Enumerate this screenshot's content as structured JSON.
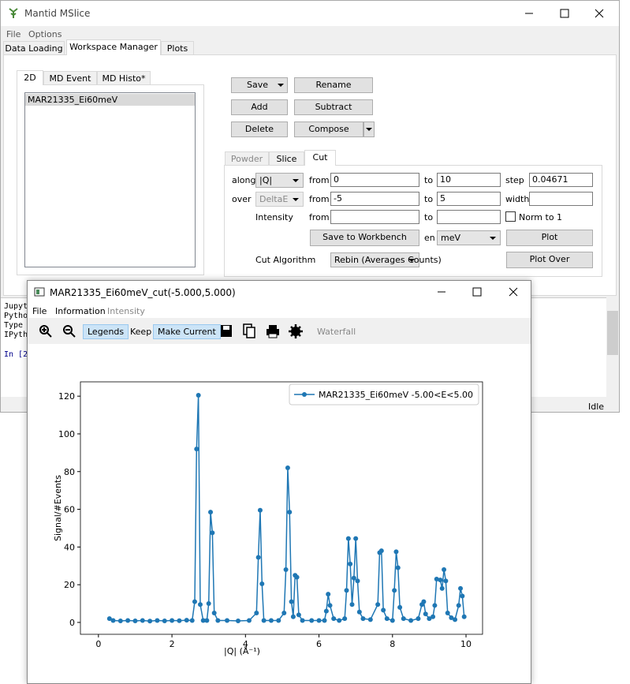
{
  "main_window": {
    "title": "Mantid MSlice",
    "menu": [
      "File",
      "Options"
    ],
    "tabs": [
      "Data Loading",
      "Workspace Manager",
      "Plots"
    ],
    "subtabs": [
      "2D",
      "MD Event",
      "MD Histo*"
    ],
    "workspaces": [
      "MAR21335_Ei60meV"
    ],
    "buttons": {
      "save": "Save",
      "rename": "Rename",
      "add": "Add",
      "subtract": "Subtract",
      "delete": "Delete",
      "compose": "Compose"
    },
    "cut_tabs": [
      "Powder",
      "Slice",
      "Cut"
    ],
    "cut_form": {
      "along_label": "along",
      "along_value": "|Q|",
      "from_label": "from",
      "from_value": "0",
      "to_label": "to",
      "to_value": "10",
      "step_label": "step",
      "step_value": "0.04671",
      "over_label": "over",
      "over_value": "DeltaE",
      "over_from": "-5",
      "over_to": "5",
      "width_label": "width",
      "intensity_label": "Intensity",
      "norm_label": "Norm to 1",
      "save_button": "Save to Workbench",
      "units_label": "en",
      "units_value": "meV",
      "plot_button": "Plot",
      "algorithm_label": "Cut Algorithm",
      "algorithm_value": "Rebin (Averages Counts)",
      "plot_over_button": "Plot Over"
    },
    "console": [
      "Jupyte",
      "Pytho",
      "Type",
      "IPytho",
      "In [2"
    ],
    "status": "Idle"
  },
  "plot_window": {
    "title": "MAR21335_Ei60meV_cut(-5.000,5.000)",
    "menu": [
      "File",
      "Information",
      "Intensity"
    ],
    "toolbar": {
      "legends": "Legends",
      "keep": "Keep",
      "make_current": "Make Current",
      "waterfall": "Waterfall"
    }
  },
  "chart_data": {
    "type": "line",
    "xlabel": "|Q| (Å⁻¹)",
    "ylabel": "Signal/#Events",
    "xlim": [
      -0.49,
      10.45
    ],
    "ylim": [
      -6.3,
      127.6
    ],
    "xticks": [
      0,
      2,
      4,
      6,
      8,
      10
    ],
    "yticks": [
      0,
      20,
      40,
      60,
      80,
      100,
      120
    ],
    "legend": "upper right",
    "x": [
      0.3,
      0.4,
      0.6,
      0.8,
      1.0,
      1.2,
      1.4,
      1.6,
      1.8,
      2.0,
      2.2,
      2.4,
      2.55,
      2.62,
      2.67,
      2.72,
      2.77,
      2.85,
      2.95,
      3.0,
      3.05,
      3.1,
      3.15,
      3.25,
      3.5,
      3.8,
      4.1,
      4.3,
      4.35,
      4.4,
      4.45,
      4.5,
      4.7,
      4.9,
      5.05,
      5.1,
      5.15,
      5.2,
      5.25,
      5.3,
      5.35,
      5.4,
      5.45,
      5.55,
      5.8,
      6.0,
      6.15,
      6.2,
      6.25,
      6.3,
      6.4,
      6.55,
      6.7,
      6.75,
      6.8,
      6.85,
      6.9,
      6.95,
      7.0,
      7.05,
      7.1,
      7.2,
      7.4,
      7.6,
      7.65,
      7.7,
      7.75,
      7.85,
      8.0,
      8.05,
      8.1,
      8.15,
      8.2,
      8.3,
      8.5,
      8.7,
      8.8,
      8.85,
      8.9,
      9.0,
      9.1,
      9.15,
      9.2,
      9.3,
      9.35,
      9.4,
      9.45,
      9.5,
      9.6,
      9.7,
      9.8,
      9.85,
      9.9,
      9.95
    ],
    "series": [
      {
        "name": "MAR21335_Ei60meV -5.00<E<5.00",
        "color": "#1f77b4",
        "values": [
          2,
          1,
          0.8,
          1,
          0.8,
          1,
          0.7,
          1,
          0.8,
          1,
          0.9,
          1.2,
          1,
          11,
          92,
          120.5,
          9.5,
          1,
          1,
          10,
          58.5,
          47.5,
          5,
          1,
          1,
          0.8,
          1,
          5,
          34.5,
          59.5,
          20.5,
          1,
          1,
          1,
          5,
          28,
          82,
          58.5,
          11,
          3,
          25,
          24,
          4,
          1,
          1,
          1,
          1,
          6,
          15,
          9,
          2,
          1,
          2,
          17,
          44.5,
          31,
          9.5,
          23.5,
          44.5,
          22,
          5.5,
          2,
          1.5,
          9.5,
          37,
          38,
          6.5,
          2,
          1,
          17,
          37.5,
          29,
          8,
          2,
          1,
          2,
          9.5,
          11,
          4.5,
          2,
          3,
          9,
          23,
          22.5,
          18,
          28,
          22,
          5,
          2.5,
          1.5,
          9,
          18,
          14,
          3
        ]
      }
    ]
  }
}
